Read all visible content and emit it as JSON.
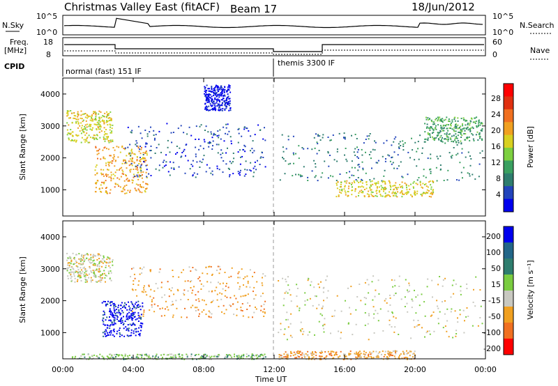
{
  "header": {
    "title": "Christmas Valley East (fitACF)",
    "beam": "Beam 17",
    "date": "18/Jun/2012"
  },
  "top_panels": {
    "nsky_label": "N.Sky",
    "nsearch_label": "N.Search",
    "noise_tick_hi": "10^5",
    "noise_tick_lo": "10^0",
    "freq_label_1": "Freq.",
    "freq_label_2": "[MHz]",
    "freq_tick_hi": "18",
    "freq_tick_lo": "8",
    "nave_label": "Nave",
    "nave_tick_hi": "60",
    "nave_tick_lo": "0",
    "cpid_label": "CPID",
    "cpid_1": "normal (fast) 151 IF",
    "cpid_2": "themis 3300 IF"
  },
  "chart_data": [
    {
      "type": "heatmap",
      "name": "power",
      "ylabel": "Slant Range [km]",
      "xlabel": "",
      "x_ticks": [
        "00:00",
        "04:00",
        "08:00",
        "12:00",
        "16:00",
        "20:00",
        "00:00"
      ],
      "y_ticks": [
        "1000",
        "2000",
        "3000",
        "4000"
      ],
      "xlim": [
        0,
        24
      ],
      "ylim": [
        180,
        4500
      ],
      "colorbar_label": "Power [dB]",
      "colorbar_ticks": [
        "4",
        "8",
        "12",
        "16",
        "20",
        "24",
        "28"
      ],
      "colors": [
        "#0000ee",
        "#2244bb",
        "#2e7d6e",
        "#3aa060",
        "#7dd040",
        "#d8d020",
        "#f0a020",
        "#f07020",
        "#e03010",
        "#ff0000"
      ],
      "blobs": [
        {
          "t0": 0.2,
          "t1": 2.8,
          "r0": 2500,
          "r1": 3500,
          "level": 5
        },
        {
          "t0": 1.8,
          "t1": 4.8,
          "r0": 900,
          "r1": 2400,
          "level": 6
        },
        {
          "t0": 3.5,
          "t1": 11.5,
          "r0": 1400,
          "r1": 3100,
          "level": 1
        },
        {
          "t0": 8.0,
          "t1": 9.5,
          "r0": 3500,
          "r1": 4300,
          "level": 0
        },
        {
          "t0": 12.2,
          "t1": 23.8,
          "r0": 1300,
          "r1": 2800,
          "level": 2
        },
        {
          "t0": 15.5,
          "t1": 21.0,
          "r0": 800,
          "r1": 1300,
          "level": 5
        },
        {
          "t0": 20.5,
          "t1": 23.8,
          "r0": 2500,
          "r1": 3300,
          "level": 3
        }
      ]
    },
    {
      "type": "heatmap",
      "name": "velocity",
      "ylabel": "Slant Range [km]",
      "xlabel": "Time UT",
      "x_ticks": [
        "00:00",
        "04:00",
        "08:00",
        "12:00",
        "16:00",
        "20:00",
        "00:00"
      ],
      "y_ticks": [
        "1000",
        "2000",
        "3000",
        "4000"
      ],
      "xlim": [
        0,
        24
      ],
      "ylim": [
        180,
        4500
      ],
      "colorbar_label": "Velocity [m s⁻¹]",
      "colorbar_ticks": [
        "200",
        "100",
        "50",
        "15",
        "-15",
        "-50",
        "-100",
        "-200"
      ],
      "colors": [
        "#0000ee",
        "#226688",
        "#2e7d6e",
        "#7acc40",
        "#c8c8c0",
        "#f0a020",
        "#f07020",
        "#ff0000"
      ],
      "blobs": [
        {
          "t0": 0.2,
          "t1": 2.8,
          "r0": 2600,
          "r1": 3500,
          "level": 4
        },
        {
          "t0": 2.2,
          "t1": 4.5,
          "r0": 900,
          "r1": 2000,
          "level": 0
        },
        {
          "t0": 3.8,
          "t1": 11.5,
          "r0": 1500,
          "r1": 3100,
          "level": 5
        },
        {
          "t0": 12.2,
          "t1": 23.8,
          "r0": 800,
          "r1": 2800,
          "level": 4
        },
        {
          "t0": 0.5,
          "t1": 11.5,
          "r0": 180,
          "r1": 350,
          "level": 3
        },
        {
          "t0": 12.2,
          "t1": 20.0,
          "r0": 180,
          "r1": 450,
          "level": 5
        }
      ]
    }
  ]
}
